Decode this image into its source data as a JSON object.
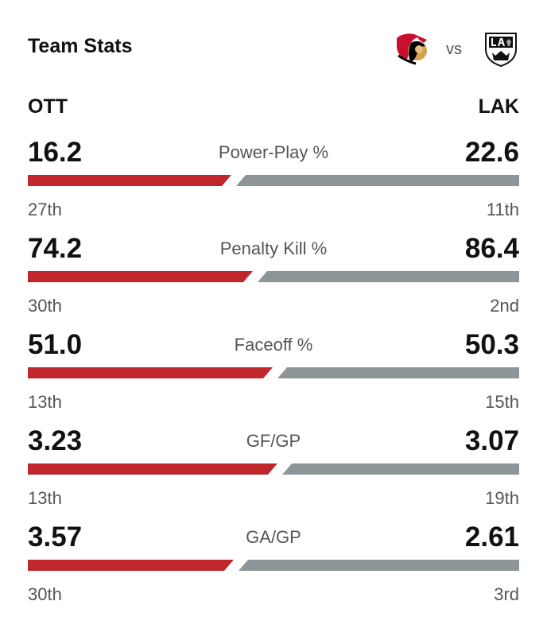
{
  "header": {
    "title": "Team Stats",
    "vs_label": "vs"
  },
  "teams": {
    "home": {
      "abbr": "OTT",
      "logo_icon": "ottawa-senators-logo-icon",
      "color": "#c0272d"
    },
    "away": {
      "abbr": "LAK",
      "logo_icon": "los-angeles-kings-logo-icon",
      "color": "#8e9598"
    }
  },
  "stats": [
    {
      "label": "Power-Play %",
      "home_value": "16.2",
      "away_value": "22.6",
      "home_rank": "27th",
      "away_rank": "11th",
      "home_share": 0.417,
      "away_share": 0.583
    },
    {
      "label": "Penalty Kill %",
      "home_value": "74.2",
      "away_value": "86.4",
      "home_rank": "30th",
      "away_rank": "2nd",
      "home_share": 0.462,
      "away_share": 0.538
    },
    {
      "label": "Faceoff %",
      "home_value": "51.0",
      "away_value": "50.3",
      "home_rank": "13th",
      "away_rank": "15th",
      "home_share": 0.503,
      "away_share": 0.497
    },
    {
      "label": "GF/GP",
      "home_value": "3.23",
      "away_value": "3.07",
      "home_rank": "13th",
      "away_rank": "19th",
      "home_share": 0.513,
      "away_share": 0.487
    },
    {
      "label": "GA/GP",
      "home_value": "3.57",
      "away_value": "2.61",
      "home_rank": "30th",
      "away_rank": "3rd",
      "home_share": 0.422,
      "away_share": 0.578
    }
  ]
}
